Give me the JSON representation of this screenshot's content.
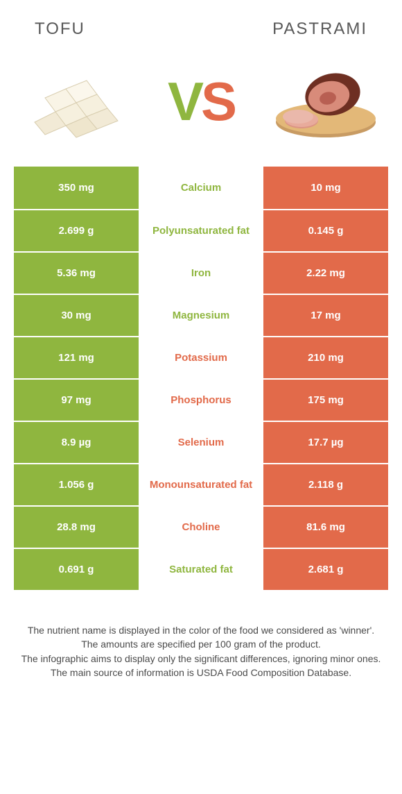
{
  "header": {
    "left_title": "TOFU",
    "right_title": "PASTRAMI"
  },
  "vs": {
    "v": "V",
    "s": "S"
  },
  "colors": {
    "green": "#8fb63f",
    "orange": "#e26a4a",
    "title_text": "#585858",
    "note_text": "#4a4a4a",
    "white": "#ffffff"
  },
  "table": {
    "left_bg": "#8fb63f",
    "right_bg": "#e26a4a",
    "rows": [
      {
        "left": "350 mg",
        "mid": "Calcium",
        "right": "10 mg",
        "winner": "left"
      },
      {
        "left": "2.699 g",
        "mid": "Polyunsaturated fat",
        "right": "0.145 g",
        "winner": "left"
      },
      {
        "left": "5.36 mg",
        "mid": "Iron",
        "right": "2.22 mg",
        "winner": "left"
      },
      {
        "left": "30 mg",
        "mid": "Magnesium",
        "right": "17 mg",
        "winner": "left"
      },
      {
        "left": "121 mg",
        "mid": "Potassium",
        "right": "210 mg",
        "winner": "right"
      },
      {
        "left": "97 mg",
        "mid": "Phosphorus",
        "right": "175 mg",
        "winner": "right"
      },
      {
        "left": "8.9 µg",
        "mid": "Selenium",
        "right": "17.7 µg",
        "winner": "right"
      },
      {
        "left": "1.056 g",
        "mid": "Monounsaturated fat",
        "right": "2.118 g",
        "winner": "right"
      },
      {
        "left": "28.8 mg",
        "mid": "Choline",
        "right": "81.6 mg",
        "winner": "right"
      },
      {
        "left": "0.691 g",
        "mid": "Saturated fat",
        "right": "2.681 g",
        "winner": "left"
      }
    ]
  },
  "notes": {
    "l1": "The nutrient name is displayed in the color of the food we considered as 'winner'.",
    "l2": "The amounts are specified per 100 gram of the product.",
    "l3": "The infographic aims to display only the significant differences, ignoring minor ones.",
    "l4": "The main source of information is USDA Food Composition Database."
  }
}
